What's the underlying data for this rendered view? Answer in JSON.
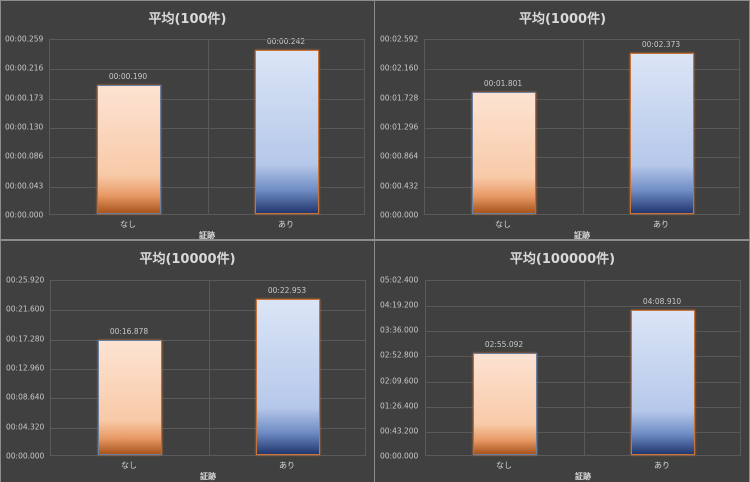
{
  "chart_data": [
    {
      "type": "bar",
      "title": "平均(100件)",
      "xlabel": "証跡",
      "ylabel": "",
      "categories": [
        "なし",
        "あり"
      ],
      "values": [
        0.19,
        0.242
      ],
      "value_labels": [
        "00:00.190",
        "00:00.242"
      ],
      "ylim": [
        0,
        0.259
      ],
      "yticks": [
        "00:00.259",
        "00:00.216",
        "00:00.173",
        "00:00.130",
        "00:00.086",
        "00:00.043",
        "00:00.000"
      ],
      "grid": true,
      "legend": null
    },
    {
      "type": "bar",
      "title": "平均(1000件)",
      "xlabel": "証跡",
      "ylabel": "",
      "categories": [
        "なし",
        "あり"
      ],
      "values": [
        1.801,
        2.373
      ],
      "value_labels": [
        "00:01.801",
        "00:02.373"
      ],
      "ylim": [
        0,
        2.592
      ],
      "yticks": [
        "00:02.592",
        "00:02.160",
        "00:01.728",
        "00:01.296",
        "00:00.864",
        "00:00.432",
        "00:00.000"
      ],
      "grid": true,
      "legend": null
    },
    {
      "type": "bar",
      "title": "平均(10000件)",
      "xlabel": "証跡",
      "ylabel": "",
      "categories": [
        "なし",
        "あり"
      ],
      "values": [
        16.878,
        22.953
      ],
      "value_labels": [
        "00:16.878",
        "00:22.953"
      ],
      "ylim": [
        0,
        25.92
      ],
      "yticks": [
        "00:25.920",
        "00:21.600",
        "00:17.280",
        "00:12.960",
        "00:08.640",
        "00:04.320",
        "00:00.000"
      ],
      "grid": true,
      "legend": null
    },
    {
      "type": "bar",
      "title": "平均(100000件)",
      "xlabel": "証跡",
      "ylabel": "",
      "categories": [
        "なし",
        "あり"
      ],
      "values": [
        175.092,
        248.91
      ],
      "value_labels": [
        "02:55.092",
        "04:08.910"
      ],
      "ylim": [
        0,
        302.4
      ],
      "yticks": [
        "05:02.400",
        "04:19.200",
        "03:36.000",
        "02:52.800",
        "02:09.600",
        "01:26.400",
        "00:43.200",
        "00:00.000"
      ],
      "grid": true,
      "legend": null
    }
  ],
  "colors": {
    "background": "#404040",
    "text": "#d9d9d9",
    "gridline": "#595959",
    "bar_nashi_top": "#fde3d3",
    "bar_nashi_bottom": "#a8541c",
    "bar_ari_top": "#dbe5f6",
    "bar_ari_bottom": "#22376e"
  }
}
